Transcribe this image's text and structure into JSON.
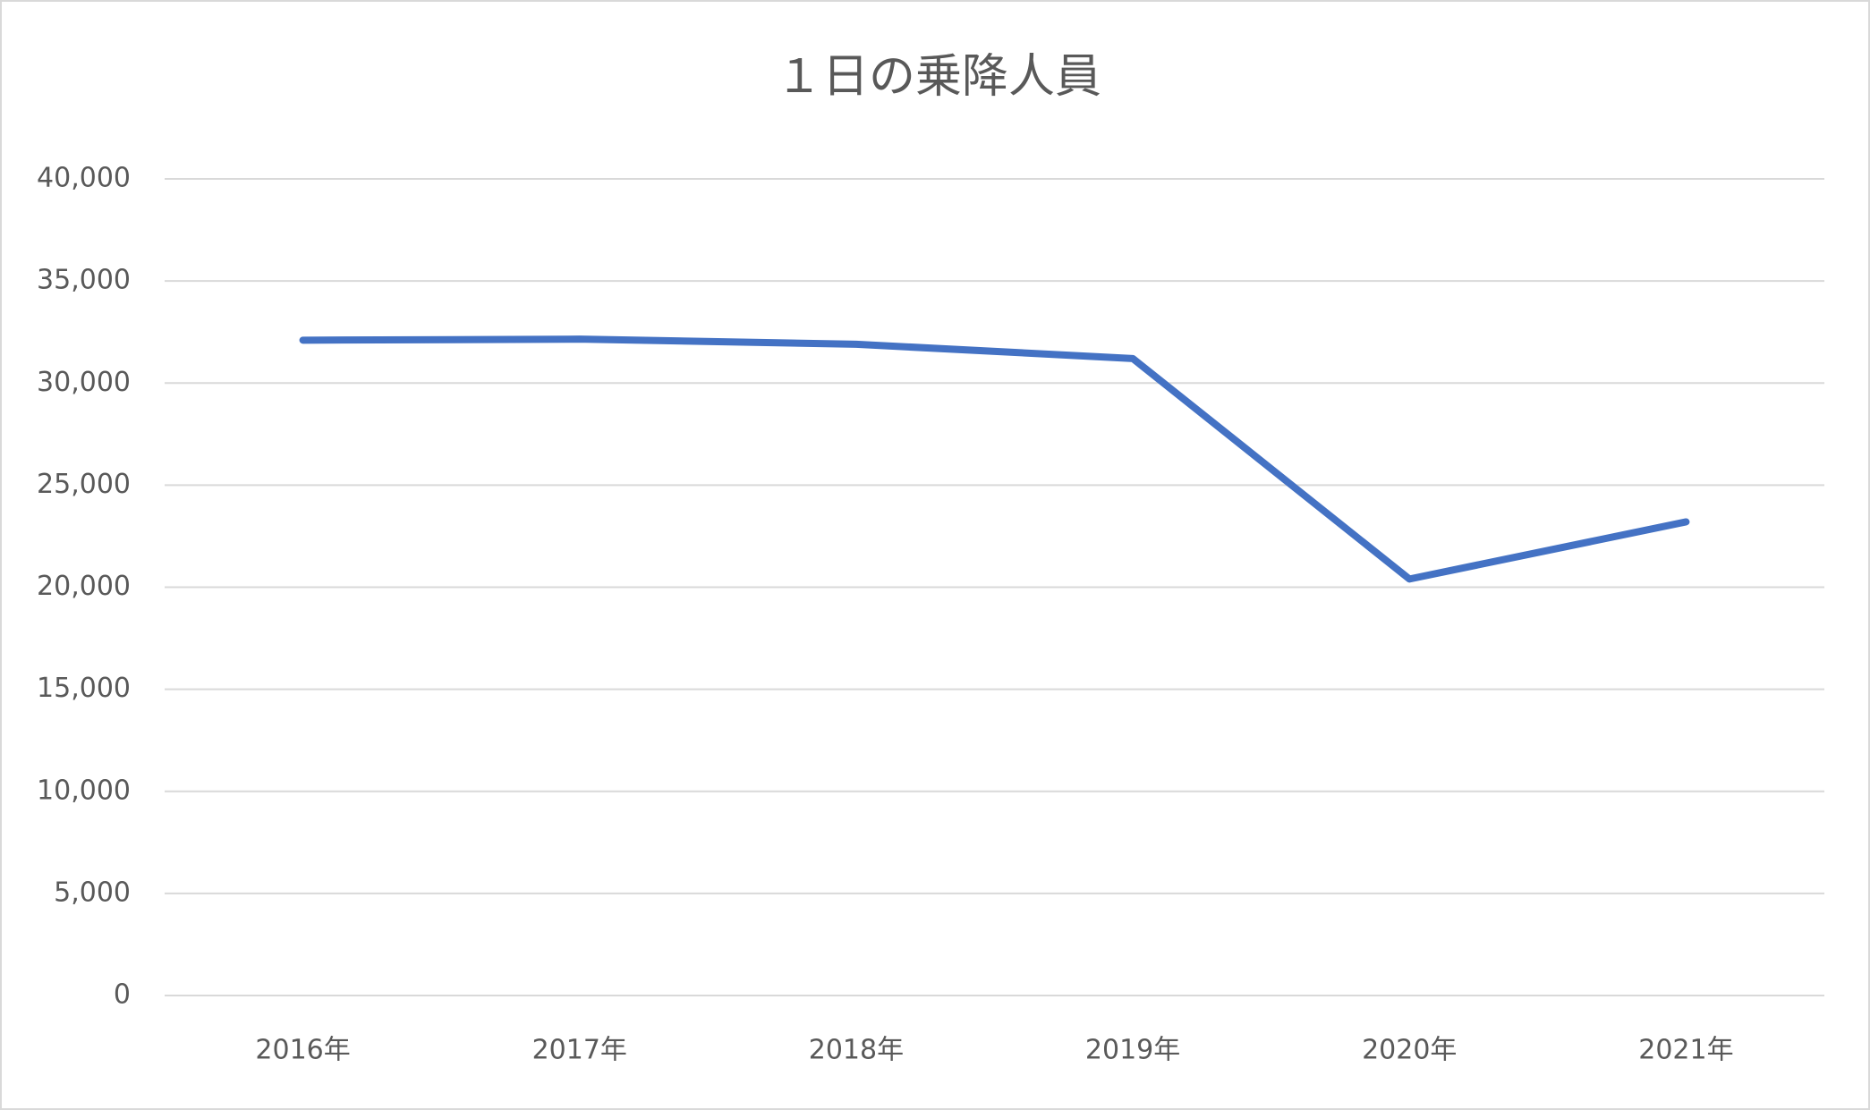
{
  "chart_data": {
    "type": "line",
    "title": "１日の乗降人員",
    "categories": [
      "2016年",
      "2017年",
      "2018年",
      "2019年",
      "2020年",
      "2021年"
    ],
    "series": [
      {
        "color": "#4472c4",
        "values": [
          32100,
          32150,
          31900,
          31200,
          20400,
          23200
        ]
      }
    ],
    "ylim": [
      0,
      40000
    ],
    "yticks": [
      0,
      {
        "value": 5000,
        "label": "5,000"
      },
      {
        "value": 10000,
        "label": "10,000"
      },
      {
        "value": 15000,
        "label": "15,000"
      },
      {
        "value": 20000,
        "label": "20,000"
      },
      {
        "value": 25000,
        "label": "25,000"
      },
      {
        "value": 30000,
        "label": "30,000"
      },
      {
        "value": 35000,
        "label": "35,000"
      },
      {
        "value": 40000,
        "label": "40,000"
      }
    ],
    "grid": true
  }
}
